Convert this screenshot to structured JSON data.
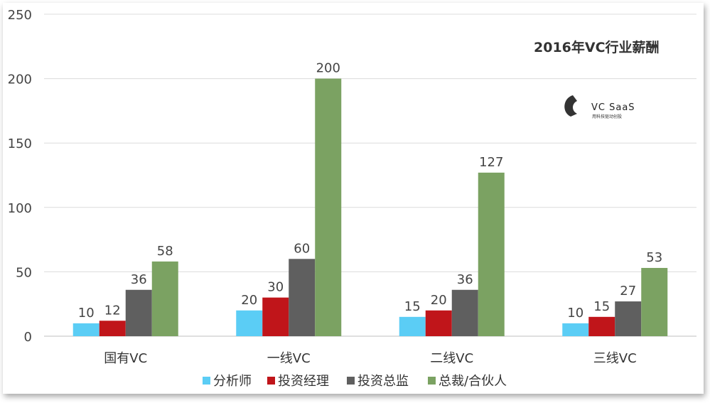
{
  "chart_data": {
    "type": "bar",
    "title": "2016年VC行业薪酬",
    "categories": [
      "国有VC",
      "一线VC",
      "二线VC",
      "三线VC"
    ],
    "series": [
      {
        "name": "分析师",
        "color": "#5bcdf5",
        "values": [
          10,
          20,
          15,
          10
        ]
      },
      {
        "name": "投资经理",
        "color": "#c0151a",
        "values": [
          12,
          30,
          20,
          15
        ]
      },
      {
        "name": "投资总监",
        "color": "#5f5f5f",
        "values": [
          36,
          60,
          36,
          27
        ]
      },
      {
        "name": "总裁/合伙人",
        "color": "#7ba262",
        "values": [
          58,
          200,
          127,
          53
        ]
      }
    ],
    "ylim": [
      0,
      250
    ],
    "yticks": [
      0,
      50,
      100,
      150,
      200,
      250
    ],
    "grid": true,
    "legend": "bottom"
  },
  "logo": {
    "text": "VC SaaS",
    "subtext": "用科技驱动创投",
    "icon": "vc-saas-logo-icon"
  }
}
